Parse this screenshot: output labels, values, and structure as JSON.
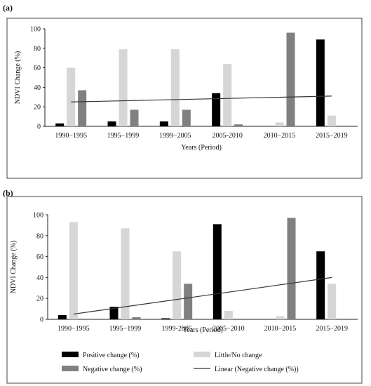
{
  "panels": {
    "a_label": "(a)",
    "b_label": "(b)"
  },
  "colors": {
    "positive": "#000000",
    "little": "#d6d6d6",
    "negative": "#808080",
    "linear": "#333333"
  },
  "chart_data": [
    {
      "type": "bar",
      "title": "",
      "xlabel": "Years (Period)",
      "ylabel": "NDVI Change (%)",
      "ylim": [
        0,
        100
      ],
      "yticks": [
        0,
        20,
        40,
        60,
        80,
        100
      ],
      "categories": [
        "1990−1995",
        "1995−1999",
        "1999−2005",
        "2005-2010",
        "2010−2015",
        "2015−2019"
      ],
      "series": [
        {
          "name": "Positive change (%)",
          "values": [
            3,
            5,
            5,
            34,
            0,
            89
          ]
        },
        {
          "name": "Little/No change",
          "values": [
            60,
            79,
            79,
            64,
            4,
            11
          ]
        },
        {
          "name": "Negative change (%)",
          "values": [
            37,
            17,
            17,
            2,
            96,
            0
          ]
        }
      ],
      "trendline": {
        "name": "Linear (Negative change (%))",
        "start": 25,
        "end": 31
      },
      "grid": false,
      "legend": "none"
    },
    {
      "type": "bar",
      "title": "",
      "xlabel": "Years (Period)",
      "ylabel": "NDVI Change (%)",
      "ylim": [
        0,
        100
      ],
      "yticks": [
        0,
        20,
        40,
        60,
        80,
        100
      ],
      "categories": [
        "1990−1995",
        "1995−1999",
        "1999-2005",
        "2005−2010",
        "2010−2015",
        "2015−2019"
      ],
      "series": [
        {
          "name": "Positive change (%)",
          "values": [
            4,
            12,
            1,
            91,
            0,
            65
          ]
        },
        {
          "name": "Little/No change",
          "values": [
            93,
            87,
            65,
            8,
            3,
            34
          ]
        },
        {
          "name": "Negative change (%)",
          "values": [
            0,
            2,
            34,
            0,
            97,
            0
          ]
        }
      ],
      "trendline": {
        "name": "Linear (Negative change (%))",
        "start": 5,
        "end": 40
      },
      "grid": false,
      "legend": "bottom"
    }
  ]
}
